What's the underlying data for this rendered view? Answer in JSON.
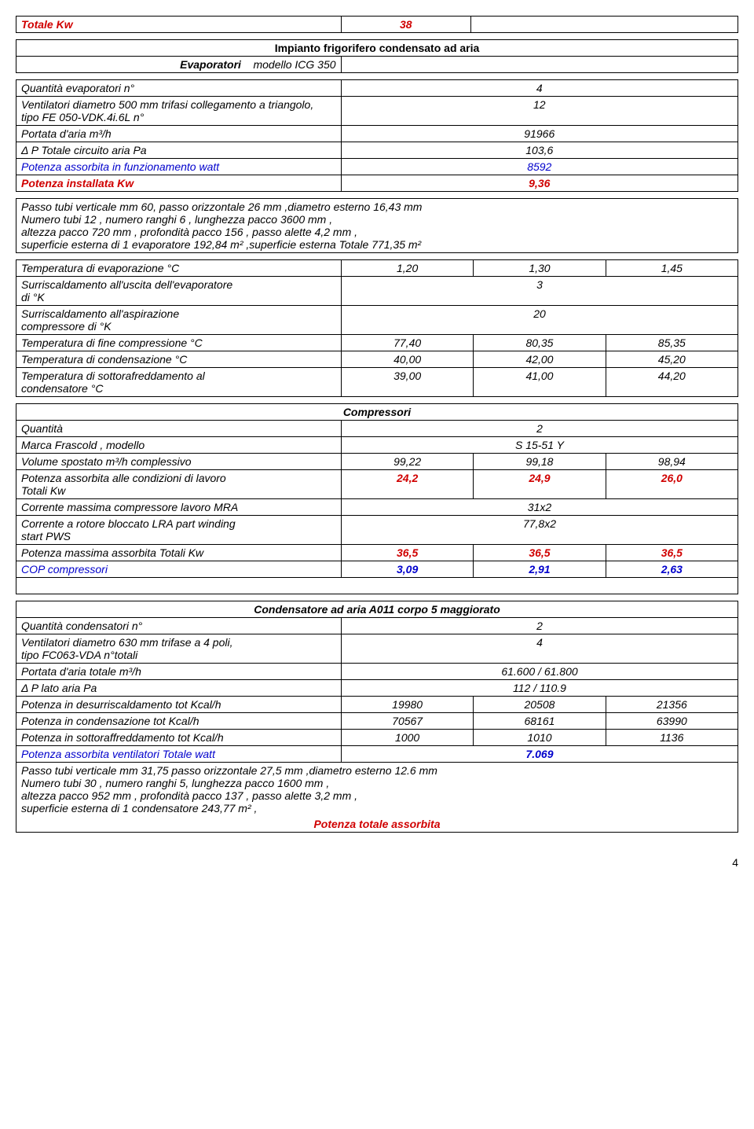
{
  "totale_kw": {
    "label": "Totale   Kw",
    "value": "38"
  },
  "section1": {
    "title": "Impianto frigorifero condensato ad aria",
    "subtitle_label": "Evaporatori",
    "subtitle_value": "modello    ICG 350",
    "rows": [
      {
        "label": "Quantità evaporatori n°",
        "v": "4"
      },
      {
        "label": "Ventilatori diametro 500 mm  trifasi collegamento a triangolo,\n tipo FE 050-VDK.4i.6L             n°",
        "v": "12"
      },
      {
        "label": "Portata d'aria                            m³/h",
        "v": "91966"
      },
      {
        "label": "Δ P Totale circuito aria              Pa",
        "v": "103,6"
      },
      {
        "label": "Potenza assorbita in funzionamento     watt",
        "v": "8592",
        "blue": true
      },
      {
        "label": "Potenza installata                     Kw",
        "v": "9,36",
        "red": true
      }
    ],
    "note": "Passo tubi verticale mm 60, passo orizzontale 26 mm ,diametro esterno 16,43 mm\nNumero tubi 12  , numero ranghi 6 , lunghezza pacco 3600 mm ,\naltezza pacco 720 mm , profondità pacco 156 , passo alette 4,2 mm ,\nsuperficie esterna di 1 evaporatore 192,84 m² ,superficie esterna Totale 771,35 m²"
  },
  "section2": {
    "rows": [
      {
        "label": "Temperatura di evaporazione               °C",
        "c1": "1,20",
        "c2": "1,30",
        "c3": "1,45"
      },
      {
        "label": "Surriscaldamento all'uscita dell'evaporatore\ndi                                                          °K",
        "span": "3"
      },
      {
        "label": "Surriscaldamento all'aspirazione\ncompressore  di                                    °K",
        "span": "20"
      },
      {
        "label": "Temperatura di fine compressione         °C",
        "c1": "77,40",
        "c2": "80,35",
        "c3": "85,35"
      },
      {
        "label": "Temperatura di condensazione              °C",
        "c1": "40,00",
        "c2": "42,00",
        "c3": "45,20"
      },
      {
        "label": "Temperatura di sottorafreddamento al\ncondensatore                                        °C",
        "c1": "39,00",
        "c2": "41,00",
        "c3": "44,20"
      }
    ]
  },
  "compressori": {
    "title": "Compressori",
    "rows": [
      {
        "label": "Quantità",
        "span": "2"
      },
      {
        "label": "Marca Frascold ,  modello",
        "span": "S 15-51 Y"
      },
      {
        "label": "Volume spostato m³/h complessivo",
        "c1": "99,22",
        "c2": "99,18",
        "c3": "98,94"
      },
      {
        "label": "Potenza assorbita alle condizioni di lavoro\nTotali                                              Kw",
        "c1": "24,2",
        "c2": "24,9",
        "c3": "26,0",
        "red": true
      },
      {
        "label": "Corrente massima compressore lavoro MRA",
        "span": "31x2"
      },
      {
        "label": "Corrente a rotore bloccato LRA part winding\nstart PWS",
        "span": "77,8x2"
      },
      {
        "label": "Potenza massima assorbita Totali    Kw",
        "c1": "36,5",
        "c2": "36,5",
        "c3": "36,5",
        "red": true
      },
      {
        "label": "COP compressori",
        "c1": "3,09",
        "c2": "2,91",
        "c3": "2,63",
        "blue_label": true,
        "blue": true
      }
    ]
  },
  "condensatore": {
    "title": "Condensatore  ad aria A011 corpo 5 maggiorato",
    "rows": [
      {
        "label": "Quantità condensatori n°",
        "span": "2"
      },
      {
        "label": "Ventilatori diametro 630 mm  trifase a 4 poli,\ntipo FC063-VDA                       n°totali",
        "span": "4"
      },
      {
        "label": "Portata d'aria totale                     m³/h",
        "span": "61.600 / 61.800"
      },
      {
        "label": "Δ P lato aria                               Pa",
        "span": "112 / 110.9"
      },
      {
        "label": "Potenza in desurriscaldamento  tot      Kcal/h",
        "c1": "19980",
        "c2": "20508",
        "c3": "21356"
      },
      {
        "label": "Potenza in condensazione          tot      Kcal/h",
        "c1": "70567",
        "c2": "68161",
        "c3": "63990"
      },
      {
        "label": "Potenza in sottoraffreddamento tot      Kcal/h",
        "c1": "1000",
        "c2": "1010",
        "c3": "1136"
      },
      {
        "label": "Potenza assorbita ventilatori Totale      watt",
        "span": "7.069",
        "blue_label": true,
        "blue": true
      }
    ],
    "note": "Passo tubi verticale mm 31,75 passo orizzontale 27,5 mm ,diametro esterno 12.6 mm\nNumero tubi 30  , numero ranghi 5, lunghezza pacco 1600 mm ,\naltezza pacco 952 mm , profondità pacco 137 , passo alette 3,2 mm ,\nsuperficie esterna di 1 condensatore 243,77 m² ,",
    "footer": "Potenza totale assorbita"
  },
  "page_num": "4"
}
